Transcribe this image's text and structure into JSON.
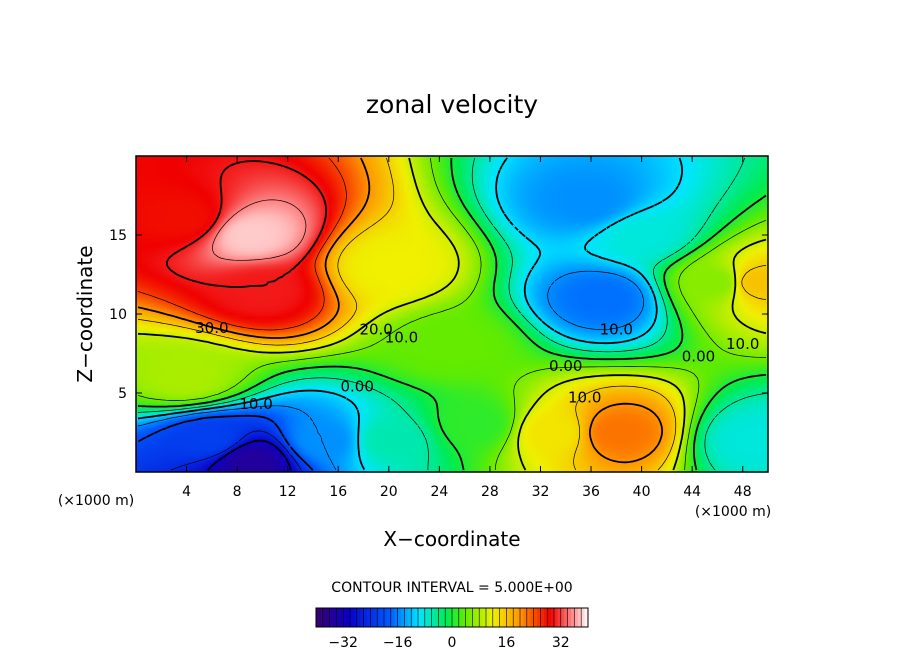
{
  "chart_data": {
    "type": "heatmap",
    "title": "zonal velocity",
    "xlabel": "X−coordinate",
    "ylabel": "Z−coordinate",
    "x_unit": "(×1000 m)",
    "x_unit_right": "(×1000 m)",
    "xlim": [
      0,
      50
    ],
    "ylim": [
      0,
      20
    ],
    "x_ticks": [
      4,
      8,
      12,
      16,
      20,
      24,
      28,
      32,
      36,
      40,
      44,
      48
    ],
    "y_ticks": [
      5,
      10,
      15
    ],
    "contour_interval_text": "CONTOUR INTERVAL = 5.000E+00",
    "colorbar": {
      "range": [
        -40,
        40
      ],
      "ticks": [
        -32,
        -16,
        0,
        16,
        32
      ],
      "tick_labels": [
        "−32",
        "−16",
        "0",
        "16",
        "32"
      ]
    },
    "contour_labels": [
      {
        "text": "30.0",
        "x": 6.0,
        "y": 8.8
      },
      {
        "text": "20.0",
        "x": 19.0,
        "y": 8.7
      },
      {
        "text": "10.0",
        "x": 21.0,
        "y": 8.2
      },
      {
        "text": "0.00",
        "x": 17.5,
        "y": 5.1
      },
      {
        "text": "10.0",
        "x": 9.5,
        "y": 4.0
      },
      {
        "text": "0.00",
        "x": 34.0,
        "y": 6.4
      },
      {
        "text": "10.0",
        "x": 35.5,
        "y": 4.4
      },
      {
        "text": "10.0",
        "x": 38.0,
        "y": 8.7
      },
      {
        "text": "0.00",
        "x": 44.5,
        "y": 7.0
      },
      {
        "text": "10.0",
        "x": 48.0,
        "y": 7.8
      }
    ],
    "features": [
      {
        "x": 9,
        "y": 15,
        "value": 38
      },
      {
        "x": 10,
        "y": 11.5,
        "value": 30
      },
      {
        "x": 4,
        "y": 16,
        "value": 28
      },
      {
        "x": 20,
        "y": 13,
        "value": 12
      },
      {
        "x": 25,
        "y": 8,
        "value": 4
      },
      {
        "x": 27,
        "y": 3,
        "value": 1
      },
      {
        "x": 36,
        "y": 17,
        "value": -15
      },
      {
        "x": 37,
        "y": 11,
        "value": -17
      },
      {
        "x": 40,
        "y": 15,
        "value": -8
      },
      {
        "x": 46,
        "y": 12,
        "value": 6
      },
      {
        "x": 49,
        "y": 12,
        "value": 16
      },
      {
        "x": 49,
        "y": 2,
        "value": -8
      },
      {
        "x": 9,
        "y": 0.7,
        "value": -35
      },
      {
        "x": 6,
        "y": 2,
        "value": -22
      },
      {
        "x": 15,
        "y": 2,
        "value": -15
      },
      {
        "x": 20,
        "y": 2,
        "value": -6
      },
      {
        "x": 38,
        "y": 2.5,
        "value": 22
      },
      {
        "x": 33,
        "y": 2.5,
        "value": 13
      },
      {
        "x": 4,
        "y": 6,
        "value": 8
      }
    ]
  }
}
